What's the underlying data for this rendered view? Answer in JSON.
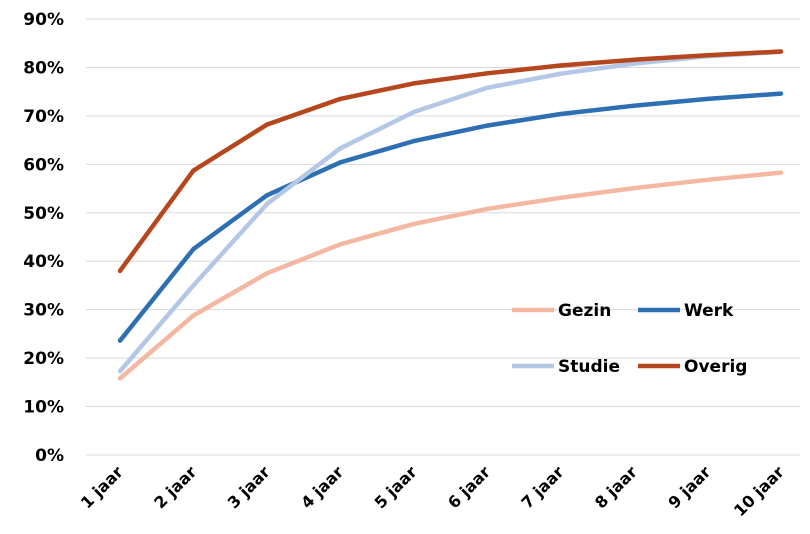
{
  "chart_data": {
    "type": "line",
    "title": "",
    "xlabel": "",
    "ylabel": "",
    "categories": [
      "1 jaar",
      "2 jaar",
      "3 jaar",
      "4 jaar",
      "5 jaar",
      "6 jaar",
      "7 jaar",
      "8 jaar",
      "9 jaar",
      "10 jaar"
    ],
    "y_ticks": [
      "0%",
      "10%",
      "20%",
      "30%",
      "40%",
      "50%",
      "60%",
      "70%",
      "80%",
      "90%"
    ],
    "ylim": [
      0,
      90
    ],
    "grid": "horizontal",
    "legend_position": "right, inside plot area",
    "series": [
      {
        "name": "Gezin",
        "color": "#F4B8A2",
        "values": [
          15.8,
          28.8,
          37.5,
          43.5,
          47.7,
          50.8,
          53.1,
          55.1,
          56.8,
          58.3
        ]
      },
      {
        "name": "Werk",
        "color": "#2E6FB3",
        "values": [
          23.6,
          42.5,
          53.6,
          60.4,
          64.8,
          68.0,
          70.4,
          72.1,
          73.5,
          74.6
        ]
      },
      {
        "name": "Studie",
        "color": "#B4C7E7",
        "values": [
          17.3,
          35.0,
          51.8,
          63.3,
          70.8,
          75.8,
          78.7,
          80.8,
          82.3,
          83.2
        ]
      },
      {
        "name": "Overig",
        "color": "#B5461D",
        "values": [
          38.0,
          58.7,
          68.2,
          73.5,
          76.7,
          78.8,
          80.4,
          81.6,
          82.5,
          83.3
        ]
      }
    ]
  }
}
